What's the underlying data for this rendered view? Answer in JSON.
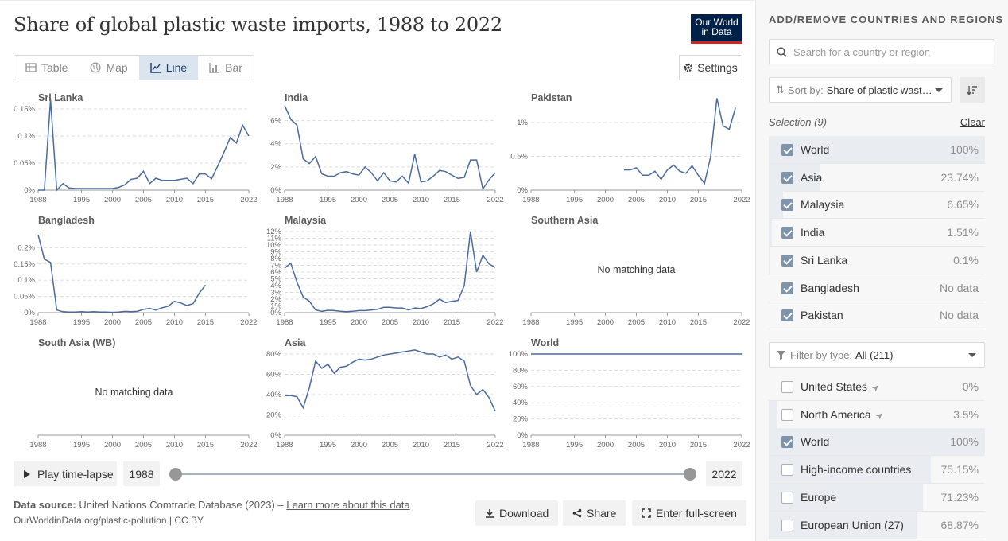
{
  "title": "Share of global plastic waste imports, 1988 to 2022",
  "logo": {
    "line1": "Our World",
    "line2": "in Data"
  },
  "tabs": [
    {
      "label": "Table",
      "icon": "table-icon",
      "active": false
    },
    {
      "label": "Map",
      "icon": "globe-icon",
      "active": false
    },
    {
      "label": "Line",
      "icon": "line-chart-icon",
      "active": true
    },
    {
      "label": "Bar",
      "icon": "bar-chart-icon",
      "active": false
    }
  ],
  "settings_label": "Settings",
  "no_data_text": "No matching data",
  "timeline": {
    "play_label": "Play time-lapse",
    "start": "1988",
    "end": "2022"
  },
  "footer": {
    "source_label": "Data source:",
    "source_text": "United Nations Comtrade Database (2023) –",
    "learn_more": "Learn more about this data",
    "attribution": "OurWorldinData.org/plastic-pollution | CC BY",
    "download": "Download",
    "share": "Share",
    "fullscreen": "Enter full-screen"
  },
  "sidebar": {
    "heading": "ADD/REMOVE COUNTRIES AND REGIONS",
    "search_placeholder": "Search for a country or region",
    "sort_label": "Sort by:",
    "sort_value": "Share of plastic wast…",
    "selection_label": "Selection (9)",
    "clear": "Clear",
    "selected": [
      {
        "name": "World",
        "value": "100%",
        "share": 1.0,
        "checked": true
      },
      {
        "name": "Asia",
        "value": "23.74%",
        "share": 0.2374,
        "checked": true
      },
      {
        "name": "Malaysia",
        "value": "6.65%",
        "share": 0.0665,
        "checked": true
      },
      {
        "name": "India",
        "value": "1.51%",
        "share": 0.0151,
        "checked": true
      },
      {
        "name": "Sri Lanka",
        "value": "0.1%",
        "share": 0.001,
        "checked": true
      },
      {
        "name": "Bangladesh",
        "value": "No data",
        "share": 0,
        "checked": true
      },
      {
        "name": "Pakistan",
        "value": "No data",
        "share": 0,
        "checked": true
      }
    ],
    "filter_label": "Filter by type:",
    "filter_value": "All (211)",
    "all_list": [
      {
        "name": "United States",
        "value": "0%",
        "share": 0,
        "checked": false,
        "arrow": true
      },
      {
        "name": "North America",
        "value": "3.5%",
        "share": 0.035,
        "checked": false,
        "arrow": true
      },
      {
        "name": "World",
        "value": "100%",
        "share": 1.0,
        "checked": true,
        "arrow": false
      },
      {
        "name": "High-income countries",
        "value": "75.15%",
        "share": 0.7515,
        "checked": false,
        "arrow": false
      },
      {
        "name": "Europe",
        "value": "71.23%",
        "share": 0.7123,
        "checked": false,
        "arrow": false
      },
      {
        "name": "European Union (27)",
        "value": "68.87%",
        "share": 0.6887,
        "checked": false,
        "arrow": false
      }
    ]
  },
  "colors": {
    "line": "#4c6a9c",
    "grid": "#dddddd",
    "axis": "#999999",
    "bar": "#e9ecf1"
  },
  "chart_data": [
    {
      "type": "line",
      "title": "Sri Lanka",
      "xlim": [
        1988,
        2022
      ],
      "ylim": [
        0,
        0.15
      ],
      "yticks": [
        0,
        0.05,
        0.1,
        0.15
      ],
      "ytick_labels": [
        "0%",
        "0.05%",
        "0.1%",
        "0.15%"
      ],
      "xticks": [
        1988,
        1995,
        2000,
        2005,
        2010,
        2015,
        2022
      ],
      "x": [
        1988,
        1989,
        1990,
        1991,
        1992,
        1993,
        1994,
        1995,
        1996,
        1997,
        1998,
        1999,
        2000,
        2001,
        2002,
        2003,
        2004,
        2005,
        2006,
        2007,
        2008,
        2009,
        2010,
        2011,
        2012,
        2013,
        2014,
        2015,
        2016,
        2017,
        2018,
        2019,
        2020,
        2021,
        2022
      ],
      "y": [
        0,
        0,
        0.167,
        0,
        0.012,
        0.004,
        0.003,
        0.003,
        0.003,
        0.003,
        0.003,
        0.003,
        0.003,
        0.005,
        0.01,
        0.02,
        0.022,
        0.035,
        0.012,
        0.022,
        0.018,
        0.018,
        0.018,
        0.02,
        0.022,
        0.012,
        0.03,
        0.03,
        0.021,
        0.045,
        0.07,
        0.097,
        0.087,
        0.12,
        0.1
      ]
    },
    {
      "type": "line",
      "title": "India",
      "xlim": [
        1988,
        2022
      ],
      "ylim": [
        0,
        7
      ],
      "yticks": [
        0,
        2,
        4,
        6
      ],
      "ytick_labels": [
        "0%",
        "2%",
        "4%",
        "6%"
      ],
      "xticks": [
        1988,
        1995,
        2000,
        2005,
        2010,
        2015,
        2022
      ],
      "x": [
        1988,
        1989,
        1990,
        1991,
        1992,
        1993,
        1994,
        1995,
        1996,
        1997,
        1998,
        1999,
        2000,
        2001,
        2002,
        2003,
        2004,
        2005,
        2006,
        2007,
        2008,
        2009,
        2010,
        2011,
        2012,
        2013,
        2014,
        2015,
        2016,
        2017,
        2018,
        2019,
        2020,
        2021,
        2022
      ],
      "y": [
        7.3,
        6.1,
        5.6,
        2.7,
        2.3,
        2.9,
        1.4,
        1.2,
        1.2,
        1.5,
        1.6,
        1.4,
        1.3,
        2.0,
        1.5,
        0.8,
        1.5,
        0.8,
        0.7,
        1.2,
        0.6,
        3.1,
        0.7,
        0.8,
        1.2,
        1.7,
        1.6,
        1.3,
        1.0,
        1.1,
        2.6,
        2.6,
        0.1,
        0.9,
        1.5
      ]
    },
    {
      "type": "line",
      "title": "Pakistan",
      "xlim": [
        1988,
        2022
      ],
      "ylim": [
        0,
        1.2
      ],
      "yticks": [
        0,
        0.5,
        1
      ],
      "ytick_labels": [
        "0%",
        "0.5%",
        "1%"
      ],
      "xticks": [
        1988,
        1995,
        2000,
        2005,
        2010,
        2015,
        2022
      ],
      "x": [
        2003,
        2004,
        2005,
        2006,
        2007,
        2008,
        2009,
        2010,
        2011,
        2012,
        2013,
        2014,
        2015,
        2016,
        2017,
        2018,
        2019,
        2020,
        2021,
        2022
      ],
      "y": [
        0.3,
        0.3,
        0.33,
        0.22,
        0.22,
        0.28,
        0.16,
        0.3,
        0.37,
        0.28,
        0.25,
        0.36,
        0.22,
        0.1,
        0.5,
        1.36,
        0.95,
        0.9,
        1.22,
        null
      ]
    },
    {
      "type": "line",
      "title": "Bangladesh",
      "xlim": [
        1988,
        2022
      ],
      "ylim": [
        0,
        0.25
      ],
      "yticks": [
        0,
        0.05,
        0.1,
        0.15,
        0.2
      ],
      "ytick_labels": [
        "0%",
        "0.05%",
        "0.1%",
        "0.15%",
        "0.2%"
      ],
      "xticks": [
        1988,
        1995,
        2000,
        2005,
        2010,
        2015,
        2022
      ],
      "x": [
        1988,
        1989,
        1990,
        1991,
        1992,
        1993,
        1994,
        1995,
        1996,
        1997,
        1998,
        1999,
        2000,
        2001,
        2002,
        2003,
        2004,
        2005,
        2006,
        2007,
        2008,
        2009,
        2010,
        2011,
        2012,
        2013,
        2014,
        2015
      ],
      "y": [
        0.24,
        0.165,
        0.155,
        0.008,
        0.003,
        0.002,
        0.002,
        0.003,
        0.002,
        0.003,
        0.002,
        0.002,
        0.001,
        0.002,
        0.004,
        0.003,
        0.004,
        0.01,
        0.013,
        0.008,
        0.015,
        0.02,
        0.035,
        0.03,
        0.022,
        0.028,
        0.06,
        0.085
      ]
    },
    {
      "type": "line",
      "title": "Malaysia",
      "xlim": [
        1988,
        2022
      ],
      "ylim": [
        0,
        12
      ],
      "yticks": [
        0,
        1,
        2,
        3,
        4,
        5,
        6,
        7,
        8,
        9,
        10,
        11,
        12
      ],
      "ytick_labels": [
        "0%",
        "1%",
        "2%",
        "3%",
        "4%",
        "5%",
        "6%",
        "7%",
        "8%",
        "9%",
        "10%",
        "11%",
        "12%"
      ],
      "xticks": [
        1988,
        1995,
        2000,
        2005,
        2010,
        2015,
        2022
      ],
      "x": [
        1988,
        1989,
        1990,
        1991,
        1992,
        1993,
        1994,
        1995,
        1996,
        1997,
        1998,
        1999,
        2000,
        2001,
        2002,
        2003,
        2004,
        2005,
        2006,
        2007,
        2008,
        2009,
        2010,
        2011,
        2012,
        2013,
        2014,
        2015,
        2016,
        2017,
        2018,
        2019,
        2020,
        2021,
        2022
      ],
      "y": [
        6.6,
        7.3,
        4.5,
        2.3,
        1.7,
        0.4,
        0.2,
        0.35,
        0.3,
        0.2,
        0.15,
        0.2,
        0.3,
        0.3,
        0.4,
        0.5,
        0.8,
        0.8,
        0.7,
        0.7,
        0.4,
        0.7,
        0.6,
        0.9,
        1.3,
        2.0,
        1.5,
        1.7,
        1.8,
        4.0,
        12.0,
        6.0,
        8.5,
        7.2,
        6.7
      ]
    },
    {
      "type": "line",
      "title": "Southern Asia",
      "xlim": [
        1988,
        2022
      ],
      "xticks": [
        1988,
        1995,
        2000,
        2005,
        2010,
        2015,
        2022
      ],
      "x": [],
      "y": [],
      "empty": true
    },
    {
      "type": "line",
      "title": "South Asia (WB)",
      "xlim": [
        1988,
        2022
      ],
      "xticks": [
        1988,
        1995,
        2000,
        2005,
        2010,
        2015,
        2022
      ],
      "x": [],
      "y": [],
      "empty": true
    },
    {
      "type": "line",
      "title": "Asia",
      "xlim": [
        1988,
        2022
      ],
      "ylim": [
        0,
        80
      ],
      "yticks": [
        0,
        20,
        40,
        60,
        80
      ],
      "ytick_labels": [
        "0%",
        "20%",
        "40%",
        "60%",
        "80%"
      ],
      "xticks": [
        1988,
        1995,
        2000,
        2005,
        2010,
        2015,
        2022
      ],
      "x": [
        1988,
        1989,
        1990,
        1991,
        1992,
        1993,
        1994,
        1995,
        1996,
        1997,
        1998,
        1999,
        2000,
        2001,
        2002,
        2003,
        2004,
        2005,
        2006,
        2007,
        2008,
        2009,
        2010,
        2011,
        2012,
        2013,
        2014,
        2015,
        2016,
        2017,
        2018,
        2019,
        2020,
        2021,
        2022
      ],
      "y": [
        39,
        39,
        38,
        27,
        47,
        73,
        66,
        70,
        61,
        67,
        68,
        72,
        75,
        74,
        75,
        77,
        79,
        80,
        81,
        82,
        83,
        84,
        82,
        80,
        80,
        77,
        79,
        75,
        77,
        73,
        49,
        40,
        45,
        37,
        23.7
      ]
    },
    {
      "type": "line",
      "title": "World",
      "xlim": [
        1988,
        2022
      ],
      "ylim": [
        0,
        100
      ],
      "yticks": [
        0,
        20,
        40,
        60,
        80,
        100
      ],
      "ytick_labels": [
        "0%",
        "20%",
        "40%",
        "60%",
        "80%",
        "100%"
      ],
      "xticks": [
        1988,
        1995,
        2000,
        2005,
        2010,
        2015,
        2022
      ],
      "x": [
        1988,
        2022
      ],
      "y": [
        100,
        100
      ]
    }
  ]
}
